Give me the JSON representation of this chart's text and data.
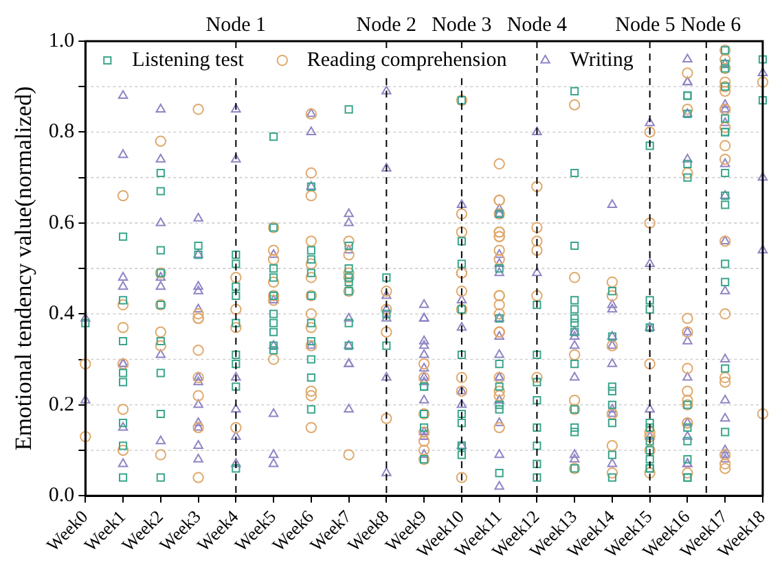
{
  "chart_data": {
    "type": "scatter",
    "ylabel": "Emotional tendency value(normalized)",
    "categories": [
      "Week0",
      "Week1",
      "Week2",
      "Week3",
      "Week4",
      "Week5",
      "Week6",
      "Week7",
      "Week8",
      "Week9",
      "Week10",
      "Week11",
      "Week12",
      "Week13",
      "Week14",
      "Week15",
      "Week16",
      "Week17",
      "Week18"
    ],
    "ylim": [
      0,
      1
    ],
    "yticks": [
      {
        "value": 0,
        "label": "0.0"
      },
      {
        "value": 0.1,
        "label": null
      },
      {
        "value": 0.2,
        "label": "0.2"
      },
      {
        "value": 0.3,
        "label": null
      },
      {
        "value": 0.4,
        "label": "0.4"
      },
      {
        "value": 0.5,
        "label": null
      },
      {
        "value": 0.6,
        "label": "0.6"
      },
      {
        "value": 0.7,
        "label": null
      },
      {
        "value": 0.8,
        "label": "0.8"
      },
      {
        "value": 0.9,
        "label": null
      },
      {
        "value": 1,
        "label": "1.0"
      }
    ],
    "grid": "y",
    "legend": "top left",
    "annotations": [
      "Node 6"
    ],
    "ref_lines": [
      {
        "axis": "x",
        "value": "Week4",
        "label": "Node 1",
        "line_style": "dashed"
      },
      {
        "axis": "x",
        "value": "Week8",
        "label": "Node 2",
        "line_style": "dashed"
      },
      {
        "axis": "x",
        "value": "Week10",
        "label": "Node 3",
        "line_style": "dashed"
      },
      {
        "axis": "x",
        "value": "Week12",
        "label": "Node 4",
        "line_style": "dashed"
      },
      {
        "axis": "x",
        "value": "Week15",
        "label": "Node 5",
        "line_style": "dashed"
      }
    ],
    "series": [
      {
        "name": "Listening test",
        "color": "#3aa58c",
        "marker": "square",
        "x": [
          "Week7",
          "Week5",
          "Week2",
          "Week2",
          "Week6",
          "Week1",
          "Week2",
          "Week5",
          "Week3",
          "Week3",
          "Week4",
          "Week4",
          "Week6",
          "Week6",
          "Week7",
          "Week10",
          "Week13",
          "Week15",
          "Week13",
          "Week11",
          "Week10",
          "Week13",
          "Week17",
          "Week18",
          "Week17",
          "Week17",
          "Week16",
          "Week16",
          "Week17",
          "Week18",
          "Week16",
          "Week17",
          "Week17",
          "Week17",
          "Week16",
          "Week16",
          "Week17",
          "Week17",
          "Week17",
          "Week17",
          "Week10",
          "Week11",
          "Week0",
          "Week1",
          "Week1",
          "Week2",
          "Week2",
          "Week1",
          "Week1",
          "Week2",
          "Week4",
          "Week4",
          "Week2",
          "Week1",
          "Week1",
          "Week1",
          "Week2",
          "Week2",
          "Week4",
          "Week5",
          "Week4",
          "Week5",
          "Week5",
          "Week4",
          "Week5",
          "Week5",
          "Week5",
          "Week6",
          "Week5",
          "Week5",
          "Week5",
          "Week6",
          "Week6",
          "Week6",
          "Week6",
          "Week4",
          "Week6",
          "Week6",
          "Week7",
          "Week7",
          "Week7",
          "Week7",
          "Week8",
          "Week8",
          "Week7",
          "Week7",
          "Week8",
          "Week4",
          "Week9",
          "Week9",
          "Week9",
          "Week9",
          "Week9",
          "Week10",
          "Week10",
          "Week10",
          "Week10",
          "Week11",
          "Week10",
          "Week10",
          "Week10",
          "Week11",
          "Week11",
          "Week11",
          "Week11",
          "Week11",
          "Week12",
          "Week12",
          "Week12",
          "Week12",
          "Week12",
          "Week12",
          "Week12",
          "Week12",
          "Week13",
          "Week13",
          "Week13",
          "Week13",
          "Week13",
          "Week13",
          "Week13",
          "Week13",
          "Week13",
          "Week13",
          "Week14",
          "Week14",
          "Week14",
          "Week14",
          "Week14",
          "Week14",
          "Week14",
          "Week15",
          "Week15",
          "Week15",
          "Week14",
          "Week15",
          "Week15",
          "Week15",
          "Week15",
          "Week15",
          "Week15",
          "Week15",
          "Week16",
          "Week16",
          "Week16",
          "Week16",
          "Week16",
          "Week16",
          "Week17",
          "Week17",
          "Week17"
        ],
        "values": [
          0.85,
          0.79,
          0.71,
          0.67,
          0.68,
          0.57,
          0.54,
          0.59,
          0.53,
          0.55,
          0.51,
          0.53,
          0.52,
          0.54,
          0.55,
          0.87,
          0.89,
          0.77,
          0.71,
          0.62,
          0.56,
          0.55,
          0.98,
          0.96,
          0.95,
          0.94,
          0.88,
          0.88,
          0.9,
          0.87,
          0.84,
          0.83,
          0.8,
          0.8,
          0.73,
          0.7,
          0.71,
          0.66,
          0.64,
          0.51,
          0.51,
          0.5,
          0.38,
          0.34,
          0.43,
          0.42,
          0.34,
          0.27,
          0.25,
          0.27,
          0.31,
          0.24,
          0.18,
          0.16,
          0.11,
          0.04,
          0.04,
          0.49,
          0.44,
          0.5,
          0.46,
          0.44,
          0.44,
          0.38,
          0.38,
          0.36,
          0.48,
          0.49,
          0.4,
          0.33,
          0.32,
          0.44,
          0.38,
          0.34,
          0.3,
          0.29,
          0.26,
          0.19,
          0.48,
          0.47,
          0.5,
          0.45,
          0.48,
          0.4,
          0.38,
          0.33,
          0.33,
          0.06,
          0.24,
          0.15,
          0.08,
          0.24,
          0.18,
          0.11,
          0.18,
          0.41,
          0.31,
          0.29,
          0.16,
          0.11,
          0.09,
          0.05,
          0.24,
          0.2,
          0.19,
          0.39,
          0.31,
          0.25,
          0.11,
          0.07,
          0.15,
          0.04,
          0.21,
          0.42,
          0.43,
          0.41,
          0.38,
          0.39,
          0.36,
          0.29,
          0.19,
          0.15,
          0.14,
          0.06,
          0.23,
          0.24,
          0.2,
          0.16,
          0.09,
          0.04,
          0.45,
          0.41,
          0.43,
          0.37,
          0.35,
          0.06,
          0.16,
          0.08,
          0.06,
          0.15,
          0.12,
          0.1,
          0.04,
          0.2,
          0.12,
          0.15,
          0.08,
          0.04,
          0.47,
          0.28,
          0.14
        ]
      },
      {
        "name": "Reading comprehension",
        "color": "#e0a96d",
        "marker": "circle",
        "x": [
          "Week2",
          "Week1",
          "Week3",
          "Week6",
          "Week6",
          "Week6",
          "Week5",
          "Week5",
          "Week5",
          "Week6",
          "Week7",
          "Week7",
          "Week10",
          "Week13",
          "Week15",
          "Week17",
          "Week17",
          "Week16",
          "Week17",
          "Week17",
          "Week18",
          "Week17",
          "Week17",
          "Week16",
          "Week17",
          "Week17",
          "Week17",
          "Week17",
          "Week17",
          "Week16",
          "Week11",
          "Week12",
          "Week11",
          "Week11",
          "Week10",
          "Week11",
          "Week10",
          "Week11",
          "Week11",
          "Week11",
          "Week11",
          "Week12",
          "Week12",
          "Week12",
          "Week11",
          "Week11",
          "Week15",
          "Week17",
          "Week1",
          "Week2",
          "Week2",
          "Week1",
          "Week2",
          "Week2",
          "Week1",
          "Week0",
          "Week1",
          "Week0",
          "Week1",
          "Week2",
          "Week3",
          "Week3",
          "Week3",
          "Week3",
          "Week3",
          "Week3",
          "Week3",
          "Week4",
          "Week3",
          "Week4",
          "Week4",
          "Week4",
          "Week5",
          "Week5",
          "Week5",
          "Week6",
          "Week6",
          "Week6",
          "Week6",
          "Week6",
          "Week5",
          "Week6",
          "Week6",
          "Week6",
          "Week6",
          "Week7",
          "Week7",
          "Week7",
          "Week8",
          "Week8",
          "Week8",
          "Week7",
          "Week8",
          "Week10",
          "Week10",
          "Week10",
          "Week10",
          "Week10",
          "Week11",
          "Week11",
          "Week11",
          "Week12",
          "Week11",
          "Week11",
          "Week11",
          "Week11",
          "Week9",
          "Week9",
          "Week10",
          "Week10",
          "Week11",
          "Week11",
          "Week11",
          "Week11",
          "Week9",
          "Week9",
          "Week9",
          "Week9",
          "Week9",
          "Week10",
          "Week12",
          "Week13",
          "Week13",
          "Week14",
          "Week14",
          "Week13",
          "Week13",
          "Week13",
          "Week14",
          "Week14",
          "Week15",
          "Week14",
          "Week15",
          "Week14",
          "Week15",
          "Week15",
          "Week15",
          "Week16",
          "Week16",
          "Week16",
          "Week16",
          "Week16",
          "Week16",
          "Week16",
          "Week16",
          "Week16",
          "Week17",
          "Week17",
          "Week17",
          "Week17",
          "Week17",
          "Week18",
          "Week17"
        ],
        "values": [
          0.78,
          0.66,
          0.85,
          0.84,
          0.71,
          0.66,
          0.59,
          0.54,
          0.52,
          0.56,
          0.56,
          0.53,
          0.87,
          0.86,
          0.8,
          0.98,
          0.96,
          0.93,
          0.94,
          0.91,
          0.91,
          0.9,
          0.89,
          0.85,
          0.85,
          0.85,
          0.81,
          0.77,
          0.74,
          0.71,
          0.73,
          0.68,
          0.65,
          0.65,
          0.62,
          0.62,
          0.58,
          0.57,
          0.57,
          0.58,
          0.58,
          0.59,
          0.56,
          0.54,
          0.54,
          0.52,
          0.6,
          0.56,
          0.42,
          0.42,
          0.49,
          0.37,
          0.36,
          0.33,
          0.29,
          0.29,
          0.19,
          0.13,
          0.1,
          0.09,
          0.04,
          0.22,
          0.26,
          0.4,
          0.39,
          0.39,
          0.32,
          0.41,
          0.15,
          0.15,
          0.37,
          0.48,
          0.47,
          0.44,
          0.43,
          0.48,
          0.51,
          0.4,
          0.37,
          0.33,
          0.3,
          0.23,
          0.22,
          0.15,
          0.44,
          0.45,
          0.48,
          0.49,
          0.45,
          0.41,
          0.36,
          0.09,
          0.17,
          0.49,
          0.41,
          0.45,
          0.41,
          0.49,
          0.42,
          0.44,
          0.44,
          0.44,
          0.36,
          0.36,
          0.36,
          0.4,
          0.29,
          0.26,
          0.23,
          0.26,
          0.26,
          0.22,
          0.23,
          0.15,
          0.18,
          0.14,
          0.12,
          0.1,
          0.08,
          0.04,
          0.26,
          0.06,
          0.48,
          0.44,
          0.33,
          0.31,
          0.21,
          0.19,
          0.18,
          0.47,
          0.29,
          0.11,
          0.1,
          0.05,
          0.05,
          0.14,
          0.13,
          0.39,
          0.36,
          0.28,
          0.23,
          0.21,
          0.16,
          0.16,
          0.2,
          0.05,
          0.07,
          0.06,
          0.25,
          0.26,
          0.4,
          0.18,
          0.09
        ]
      },
      {
        "name": "Writing",
        "color": "#8f84c4",
        "marker": "triangle",
        "x": [
          "Week1",
          "Week2",
          "Week4",
          "Week1",
          "Week2",
          "Week4",
          "Week2",
          "Week3",
          "Week3",
          "Week5",
          "Week6",
          "Week6",
          "Week6",
          "Week7",
          "Week7",
          "Week7",
          "Week8",
          "Week8",
          "Week12",
          "Week15",
          "Week16",
          "Week16",
          "Week16",
          "Week17",
          "Week18",
          "Week16",
          "Week17",
          "Week17",
          "Week17",
          "Week16",
          "Week17",
          "Week18",
          "Week17",
          "Week14",
          "Week10",
          "Week11",
          "Week11",
          "Week17",
          "Week18",
          "Week11",
          "Week0",
          "Week1",
          "Week1",
          "Week2",
          "Week2",
          "Week3",
          "Week3",
          "Week3",
          "Week2",
          "Week1",
          "Week1",
          "Week3",
          "Week3",
          "Week4",
          "Week3",
          "Week0",
          "Week1",
          "Week1",
          "Week2",
          "Week3",
          "Week3",
          "Week3",
          "Week3",
          "Week4",
          "Week4",
          "Week5",
          "Week5",
          "Week4",
          "Week5",
          "Week5",
          "Week5",
          "Week7",
          "Week6",
          "Week7",
          "Week7",
          "Week7",
          "Week8",
          "Week7",
          "Week8",
          "Week8",
          "Week8",
          "Week8",
          "Week9",
          "Week9",
          "Week9",
          "Week9",
          "Week9",
          "Week9",
          "Week9",
          "Week9",
          "Week9",
          "Week9",
          "Week9",
          "Week10",
          "Week9",
          "Week10",
          "Week10",
          "Week9",
          "Week9",
          "Week11",
          "Week11",
          "Week12",
          "Week10",
          "Week11",
          "Week11",
          "Week11",
          "Week11",
          "Week11",
          "Week11",
          "Week11",
          "Week11",
          "Week10",
          "Week11",
          "Week11",
          "Week13",
          "Week13",
          "Week13",
          "Week13",
          "Week13",
          "Week14",
          "Week14",
          "Week14",
          "Week14",
          "Week14",
          "Week15",
          "Week14",
          "Week14",
          "Week15",
          "Week15",
          "Week13",
          "Week14",
          "Week15",
          "Week16",
          "Week16",
          "Week16",
          "Week16",
          "Week16",
          "Week16",
          "Week16",
          "Week17",
          "Week17",
          "Week17",
          "Week17",
          "Week17",
          "Week17",
          "Week17"
        ],
        "values": [
          0.88,
          0.85,
          0.85,
          0.75,
          0.74,
          0.74,
          0.6,
          0.61,
          0.53,
          0.53,
          0.84,
          0.8,
          0.68,
          0.62,
          0.6,
          0.54,
          0.89,
          0.72,
          0.8,
          0.82,
          0.91,
          0.91,
          0.96,
          0.95,
          0.93,
          0.84,
          0.86,
          0.85,
          0.82,
          0.74,
          0.73,
          0.7,
          0.66,
          0.64,
          0.64,
          0.63,
          0.62,
          0.56,
          0.54,
          0.53,
          0.39,
          0.48,
          0.46,
          0.48,
          0.46,
          0.45,
          0.46,
          0.41,
          0.31,
          0.29,
          0.29,
          0.25,
          0.26,
          0.26,
          0.2,
          0.21,
          0.07,
          0.15,
          0.12,
          0.08,
          0.16,
          0.15,
          0.11,
          0.13,
          0.07,
          0.07,
          0.09,
          0.19,
          0.18,
          0.43,
          0.33,
          0.39,
          0.33,
          0.33,
          0.29,
          0.29,
          0.26,
          0.19,
          0.05,
          0.41,
          0.39,
          0.44,
          0.09,
          0.13,
          0.42,
          0.39,
          0.39,
          0.34,
          0.33,
          0.31,
          0.28,
          0.26,
          0.25,
          0.37,
          0.21,
          0.23,
          0.2,
          0.13,
          0.14,
          0.51,
          0.49,
          0.49,
          0.43,
          0.39,
          0.35,
          0.31,
          0.26,
          0.26,
          0.21,
          0.21,
          0.16,
          0.11,
          0.09,
          0.02,
          0.09,
          0.35,
          0.36,
          0.33,
          0.26,
          0.35,
          0.41,
          0.42,
          0.33,
          0.29,
          0.37,
          0.19,
          0.18,
          0.19,
          0.13,
          0.08,
          0.07,
          0.51,
          0.07,
          0.26,
          0.34,
          0.36,
          0.16,
          0.13,
          0.07,
          0.09,
          0.08,
          0.1,
          0.45,
          0.3,
          0.21,
          0.17
        ]
      }
    ]
  }
}
